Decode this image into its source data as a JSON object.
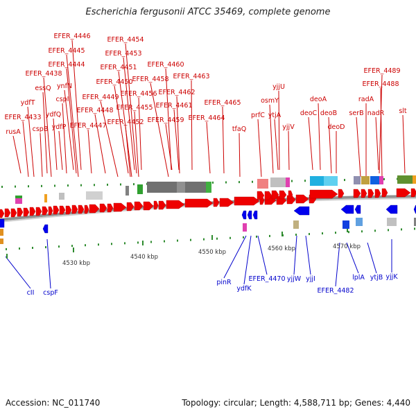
{
  "title": "Escherichia fergusonii ATCC 35469, complete genome",
  "footer": {
    "accession": "Accession: NC_011740",
    "summary": "Topology: circular; Length: 4,588,711 bp; Genes: 4,440"
  },
  "colors": {
    "forward_label": "#cc0000",
    "reverse_label": "#0000cc",
    "forward_gene": "#ee0000",
    "reverse_gene": "#0000ee",
    "backbone": "#888888",
    "tick": "#2e8b2e"
  },
  "ticks": [
    "4530 kbp",
    "4540 kbp",
    "4550 kbp",
    "4560 kbp",
    "4570 kbp"
  ],
  "top_labels": [
    "EFER_4446",
    "EFER_4454",
    "EFER_4445",
    "EFER_4453",
    "EFER_4444",
    "EFER_4451",
    "EFER_4460",
    "EFER_4489",
    "EFER_4438",
    "ynfN",
    "EFER_4450",
    "EFER_4458",
    "EFER_4463",
    "essQ",
    "EFER_4488",
    "yjjU",
    "cspI",
    "EFER_4449",
    "EFER_4456",
    "EFER_4462",
    "ydfT",
    "deoA",
    "osmY",
    "radA",
    "EFER_4461",
    "EFER_4465",
    "cspB",
    "ydfQ",
    "EFER_4448",
    "EFER_4455",
    "deoC",
    "deoB",
    "serB",
    "nadR",
    "slt",
    "EFER_4433",
    "ydfP",
    "EFER_4447",
    "EFER_4452",
    "EFER_4459",
    "EFER_4464",
    "prfC",
    "ytjA",
    "rusA",
    "tfaQ",
    "yjjV",
    "deoD"
  ],
  "bottom_labels": [
    "cII",
    "cspF",
    "pinR",
    "ydfK",
    "EFER_4470",
    "yjjW",
    "yjjI",
    "EFER_4482",
    "lplA",
    "ytjB",
    "yjjK"
  ]
}
